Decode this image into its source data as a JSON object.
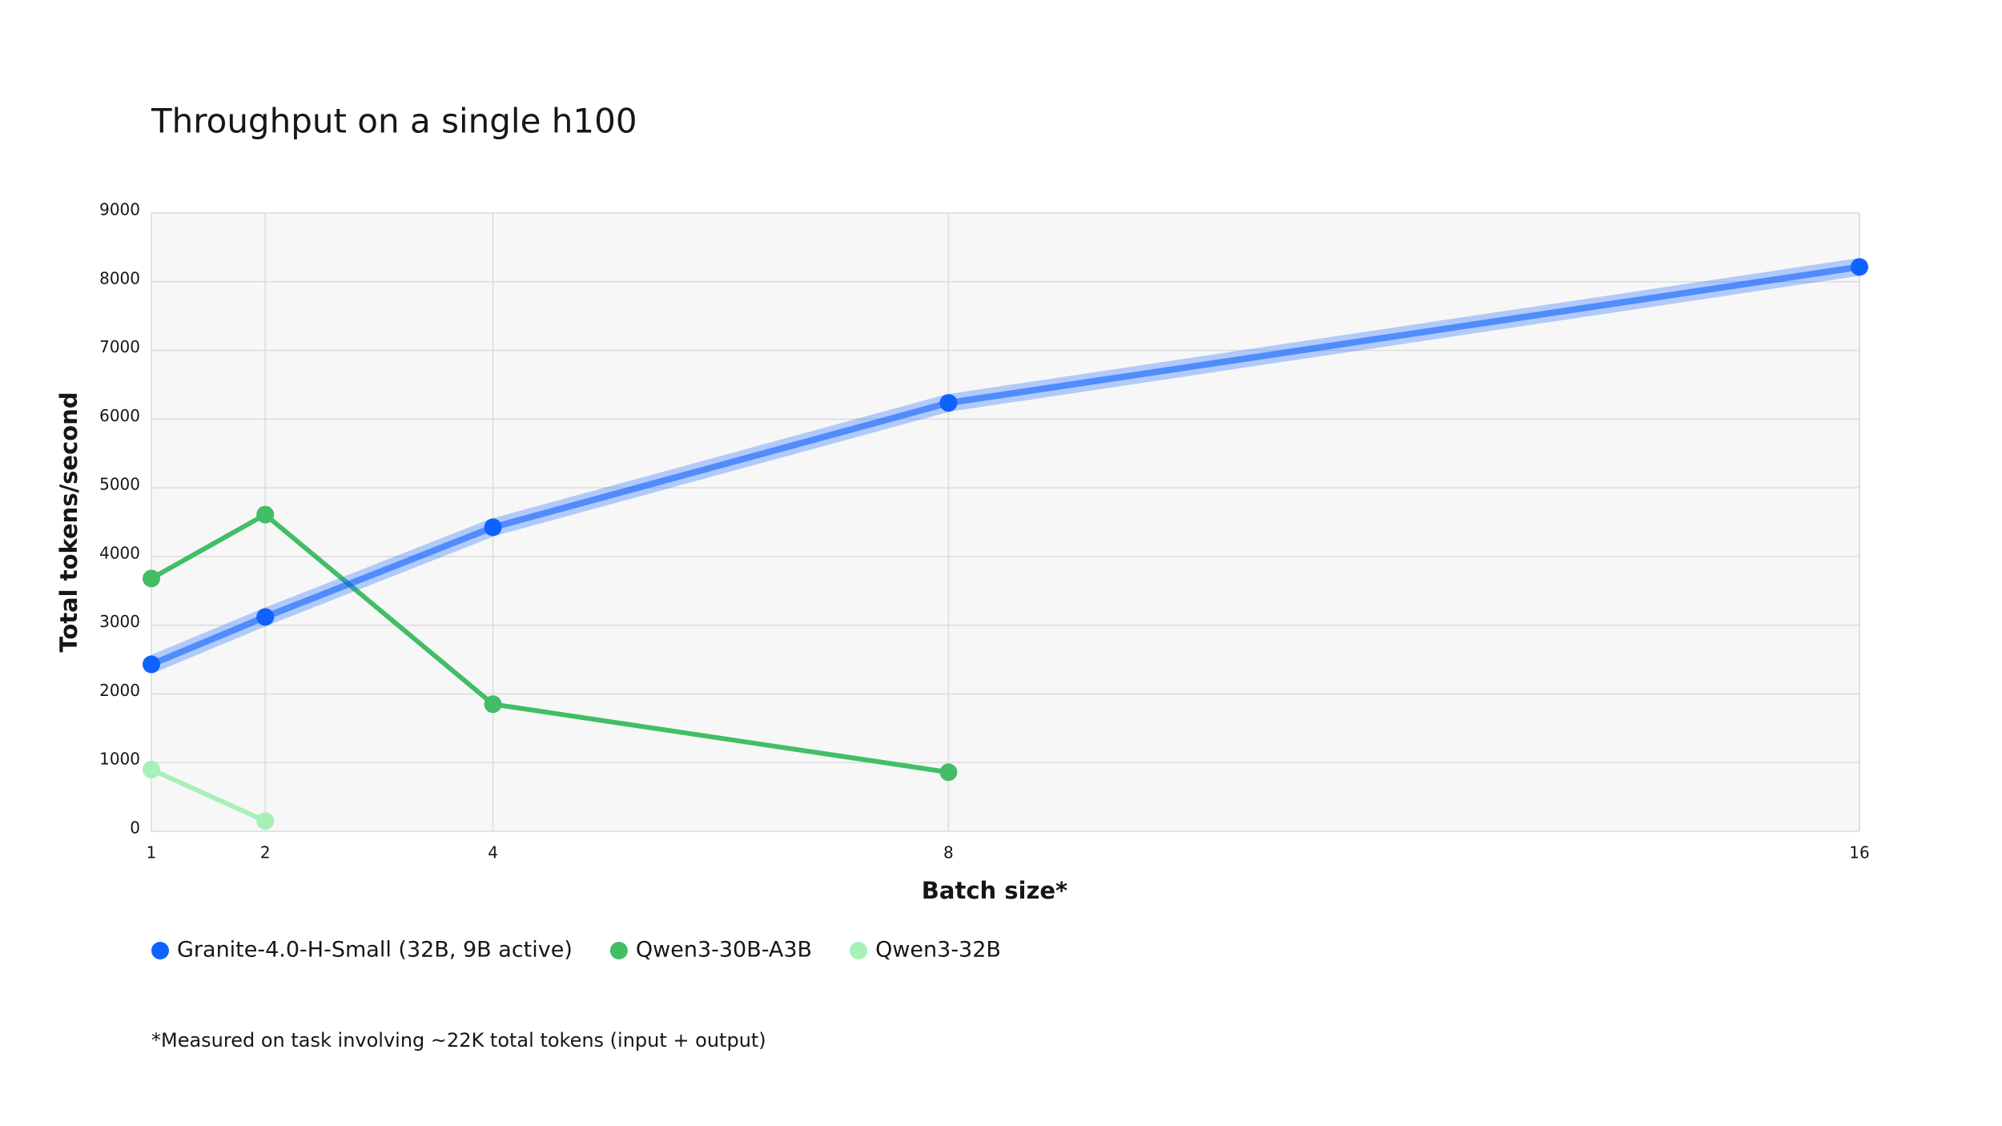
{
  "chart_data": {
    "type": "line",
    "title": "Throughput on a single h100",
    "x_label": "Batch size*",
    "y_label": "Total tokens/second",
    "footnote": "*Measured on task involving ~22K total tokens (input + output)",
    "x": [
      1,
      2,
      4,
      8,
      16
    ],
    "series": [
      {
        "name": "Granite-4.0-H-Small (32B, 9B active)",
        "color": "#0f62fe",
        "values": [
          2430,
          3120,
          4425,
          6236,
          8215
        ]
      },
      {
        "name": "Qwen3-30B-A3B",
        "color": "#42be65",
        "values": [
          3680,
          4610,
          1850,
          860,
          null
        ]
      },
      {
        "name": "Qwen3-32B",
        "color": "#a7f0ba",
        "values": [
          900,
          150,
          null,
          null,
          null
        ]
      }
    ],
    "xlim": [
      1,
      16
    ],
    "xticks": [
      1,
      2,
      4,
      8,
      16
    ],
    "ylim": [
      0,
      9000
    ],
    "yticks": [
      0,
      1000,
      2000,
      3000,
      4000,
      5000,
      6000,
      7000,
      8000,
      9000
    ],
    "grid": true
  }
}
